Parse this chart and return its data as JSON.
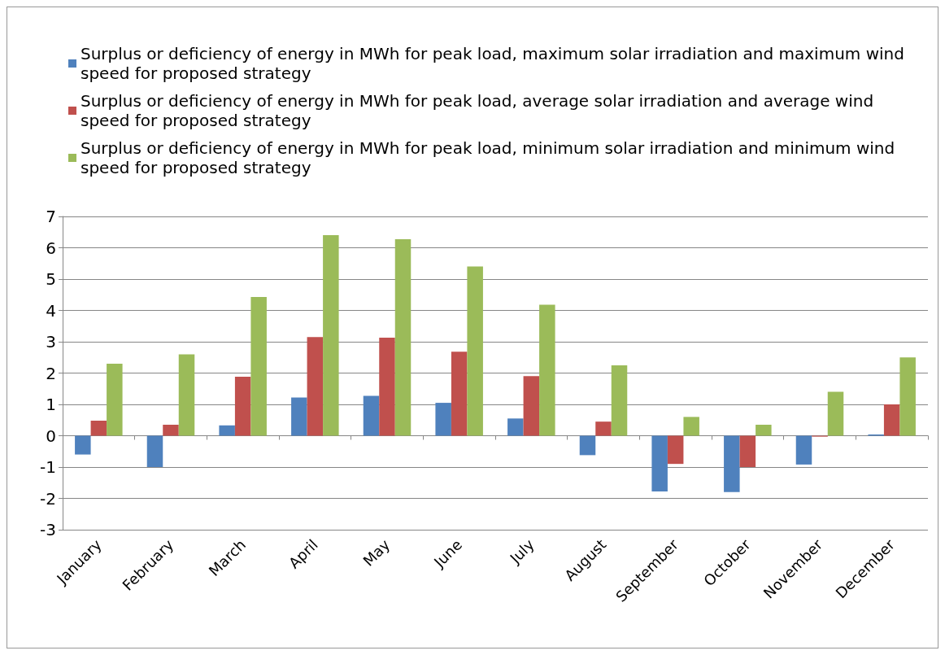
{
  "chart_data": {
    "type": "bar",
    "categories": [
      "January",
      "February",
      "March",
      "April",
      "May",
      "June",
      "July",
      "August",
      "September",
      "October",
      "November",
      "December"
    ],
    "series": [
      {
        "name": "Surplus or deficiency of energy in MWh for peak load, maximum solar irradiation and maximum wind speed for proposed strategy",
        "color": "#4f81bd",
        "values": [
          -0.6,
          -1.0,
          0.33,
          1.22,
          1.27,
          1.05,
          0.55,
          -0.62,
          -1.78,
          -1.8,
          -0.92,
          0.04
        ]
      },
      {
        "name": "Surplus or deficiency of energy in MWh for peak load, average solar irradiation and average wind speed for proposed strategy",
        "color": "#c0504d",
        "values": [
          0.48,
          0.35,
          1.88,
          3.15,
          3.13,
          2.68,
          1.9,
          0.45,
          -0.9,
          -1.0,
          -0.03,
          1.0
        ]
      },
      {
        "name": "Surplus or deficiency of energy in MWh for peak load, minimum solar irradiation and minimum wind speed for proposed strategy",
        "color": "#9bbb59",
        "values": [
          2.3,
          2.6,
          4.43,
          6.4,
          6.27,
          5.4,
          4.18,
          2.25,
          0.6,
          0.35,
          1.4,
          2.5
        ]
      }
    ],
    "ylim": [
      -3,
      7
    ],
    "yticks": [
      -3,
      -2,
      -1,
      0,
      1,
      2,
      3,
      4,
      5,
      6,
      7
    ],
    "grid": "y",
    "legend": "top"
  }
}
